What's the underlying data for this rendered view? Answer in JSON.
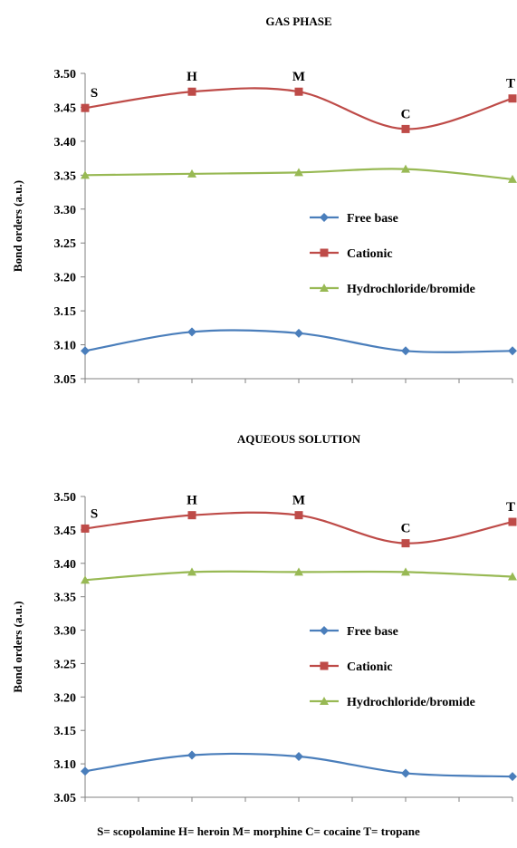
{
  "caption": "S= scopolamine H= heroin M= morphine C= cocaine T= tropane",
  "chart_data": [
    {
      "type": "line",
      "title": "GAS PHASE",
      "xlabel": "",
      "ylabel": "Bond orders (a.u.)",
      "categories": [
        "S",
        "H",
        "M",
        "C",
        "T"
      ],
      "ylim": [
        3.05,
        3.5
      ],
      "yticks": [
        "3.50",
        "3.45",
        "3.40",
        "3.35",
        "3.30",
        "3.25",
        "3.20",
        "3.15",
        "3.10",
        "3.05"
      ],
      "series": [
        {
          "name": "Free base",
          "color": "#4a7ebb",
          "marker": "diamond",
          "values": [
            3.091,
            3.119,
            3.117,
            3.091,
            3.091
          ]
        },
        {
          "name": "Cationic",
          "color": "#be4b48",
          "marker": "square",
          "values": [
            3.449,
            3.473,
            3.473,
            3.418,
            3.463
          ]
        },
        {
          "name": "Hydrochloride/bromide",
          "color": "#98b954",
          "marker": "triangle",
          "values": [
            3.35,
            3.352,
            3.354,
            3.359,
            3.344
          ]
        }
      ],
      "legend": "center-right",
      "grid": false
    },
    {
      "type": "line",
      "title": "AQUEOUS SOLUTION",
      "xlabel": "",
      "ylabel": "Bond orders (a.u.)",
      "categories": [
        "S",
        "H",
        "M",
        "C",
        "T"
      ],
      "ylim": [
        3.05,
        3.5
      ],
      "yticks": [
        "3.50",
        "3.45",
        "3.40",
        "3.35",
        "3.30",
        "3.25",
        "3.20",
        "3.15",
        "3.10",
        "3.05"
      ],
      "series": [
        {
          "name": "Free base",
          "color": "#4a7ebb",
          "marker": "diamond",
          "values": [
            3.089,
            3.113,
            3.111,
            3.086,
            3.081
          ]
        },
        {
          "name": "Cationic",
          "color": "#be4b48",
          "marker": "square",
          "values": [
            3.452,
            3.472,
            3.472,
            3.43,
            3.462
          ]
        },
        {
          "name": "Hydrochloride/bromide",
          "color": "#98b954",
          "marker": "triangle",
          "values": [
            3.375,
            3.387,
            3.387,
            3.387,
            3.38
          ]
        }
      ],
      "legend": "center-right",
      "grid": false
    }
  ]
}
